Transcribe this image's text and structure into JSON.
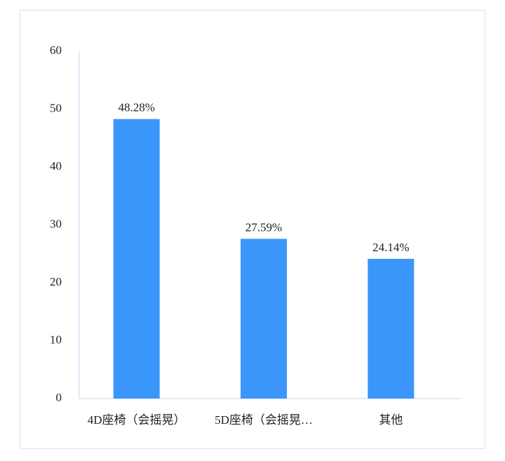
{
  "chart_data": {
    "type": "bar",
    "categories": [
      "4D座椅（会摇晃）",
      "5D座椅（会摇晃…",
      "其他"
    ],
    "values": [
      48.28,
      27.59,
      24.14
    ],
    "value_labels": [
      "48.28%",
      "27.59%",
      "24.14%"
    ],
    "color": "#3a96fb",
    "ylim": [
      0,
      60
    ],
    "yticks": [
      0,
      10,
      20,
      30,
      40,
      50,
      60
    ],
    "grid": false
  }
}
